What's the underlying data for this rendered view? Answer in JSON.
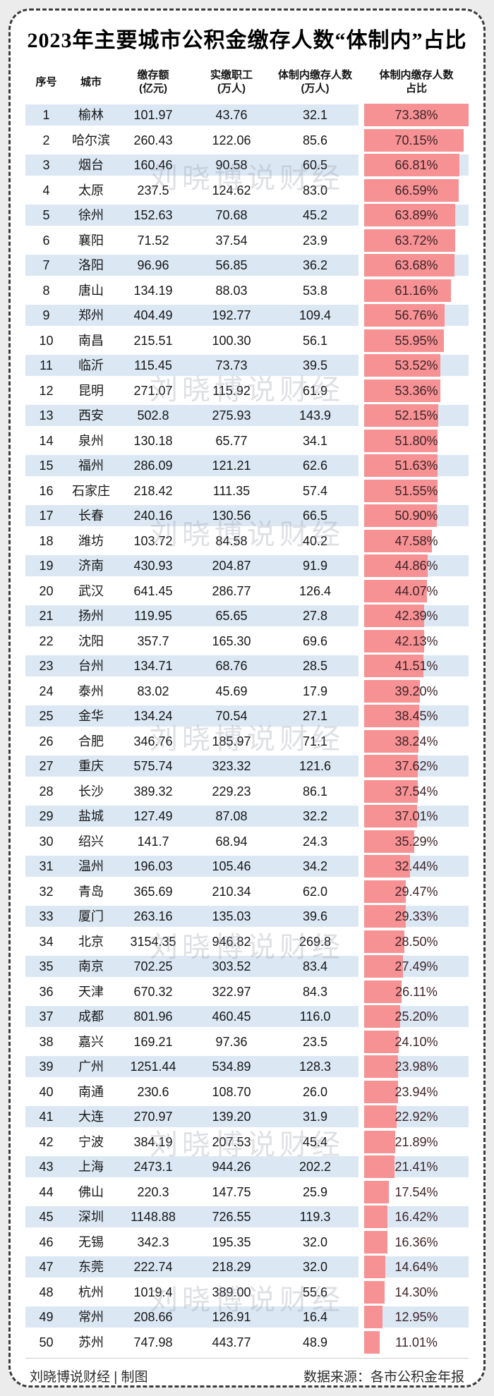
{
  "title": "2023年主要城市公积金缴存人数“体制内”占比",
  "table_headers": [
    {
      "line1": "序号",
      "line2": ""
    },
    {
      "line1": "城市",
      "line2": ""
    },
    {
      "line1": "缴存额",
      "line2": "(亿元)"
    },
    {
      "line1": "实缴职工",
      "line2": "(万人)"
    },
    {
      "line1": "体制内缴存人数",
      "line2": "(万人)"
    },
    {
      "line1": "体制内缴存人数",
      "line2": "占比"
    }
  ],
  "watermark": "刘晓博说财经",
  "footer": {
    "credit": "刘晓博说财经 | 制图",
    "source": "数据来源：各市公积金年报"
  },
  "colors": {
    "bar": "#f69194",
    "row_alt": "#dbe8f4",
    "ratio_text": "#3f2327",
    "title_text": "#000000"
  },
  "chart_data": {
    "type": "table",
    "title": "2023年主要城市公积金缴存人数“体制内”占比",
    "columns": [
      "序号",
      "城市",
      "缴存额(亿元)",
      "实缴职工(万人)",
      "体制内缴存人数(万人)",
      "体制内缴存人数占比"
    ],
    "bar_column": "体制内缴存人数占比",
    "bar_scale_max_pct": 73.38,
    "rows": [
      {
        "rank": "1",
        "city": "榆林",
        "amount": "101.97",
        "workers": "43.76",
        "inside": "32.1",
        "ratio": "73.38%",
        "ratio_value": 73.38
      },
      {
        "rank": "2",
        "city": "哈尔滨",
        "amount": "260.43",
        "workers": "122.06",
        "inside": "85.6",
        "ratio": "70.15%",
        "ratio_value": 70.15
      },
      {
        "rank": "3",
        "city": "烟台",
        "amount": "160.46",
        "workers": "90.58",
        "inside": "60.5",
        "ratio": "66.81%",
        "ratio_value": 66.81
      },
      {
        "rank": "4",
        "city": "太原",
        "amount": "237.5",
        "workers": "124.62",
        "inside": "83.0",
        "ratio": "66.59%",
        "ratio_value": 66.59
      },
      {
        "rank": "5",
        "city": "徐州",
        "amount": "152.63",
        "workers": "70.68",
        "inside": "45.2",
        "ratio": "63.89%",
        "ratio_value": 63.89
      },
      {
        "rank": "6",
        "city": "襄阳",
        "amount": "71.52",
        "workers": "37.54",
        "inside": "23.9",
        "ratio": "63.72%",
        "ratio_value": 63.72
      },
      {
        "rank": "7",
        "city": "洛阳",
        "amount": "96.96",
        "workers": "56.85",
        "inside": "36.2",
        "ratio": "63.68%",
        "ratio_value": 63.68
      },
      {
        "rank": "8",
        "city": "唐山",
        "amount": "134.19",
        "workers": "88.03",
        "inside": "53.8",
        "ratio": "61.16%",
        "ratio_value": 61.16
      },
      {
        "rank": "9",
        "city": "郑州",
        "amount": "404.49",
        "workers": "192.77",
        "inside": "109.4",
        "ratio": "56.76%",
        "ratio_value": 56.76
      },
      {
        "rank": "10",
        "city": "南昌",
        "amount": "215.51",
        "workers": "100.30",
        "inside": "56.1",
        "ratio": "55.95%",
        "ratio_value": 55.95
      },
      {
        "rank": "11",
        "city": "临沂",
        "amount": "115.45",
        "workers": "73.73",
        "inside": "39.5",
        "ratio": "53.52%",
        "ratio_value": 53.52
      },
      {
        "rank": "12",
        "city": "昆明",
        "amount": "271.07",
        "workers": "115.92",
        "inside": "61.9",
        "ratio": "53.36%",
        "ratio_value": 53.36
      },
      {
        "rank": "13",
        "city": "西安",
        "amount": "502.8",
        "workers": "275.93",
        "inside": "143.9",
        "ratio": "52.15%",
        "ratio_value": 52.15
      },
      {
        "rank": "14",
        "city": "泉州",
        "amount": "130.18",
        "workers": "65.77",
        "inside": "34.1",
        "ratio": "51.80%",
        "ratio_value": 51.8
      },
      {
        "rank": "15",
        "city": "福州",
        "amount": "286.09",
        "workers": "121.21",
        "inside": "62.6",
        "ratio": "51.63%",
        "ratio_value": 51.63
      },
      {
        "rank": "16",
        "city": "石家庄",
        "amount": "218.42",
        "workers": "111.35",
        "inside": "57.4",
        "ratio": "51.55%",
        "ratio_value": 51.55
      },
      {
        "rank": "17",
        "city": "长春",
        "amount": "240.16",
        "workers": "130.56",
        "inside": "66.5",
        "ratio": "50.90%",
        "ratio_value": 50.9
      },
      {
        "rank": "18",
        "city": "潍坊",
        "amount": "103.72",
        "workers": "84.58",
        "inside": "40.2",
        "ratio": "47.58%",
        "ratio_value": 47.58
      },
      {
        "rank": "19",
        "city": "济南",
        "amount": "430.93",
        "workers": "204.87",
        "inside": "91.9",
        "ratio": "44.86%",
        "ratio_value": 44.86
      },
      {
        "rank": "20",
        "city": "武汉",
        "amount": "641.45",
        "workers": "286.77",
        "inside": "126.4",
        "ratio": "44.07%",
        "ratio_value": 44.07
      },
      {
        "rank": "21",
        "city": "扬州",
        "amount": "119.95",
        "workers": "65.65",
        "inside": "27.8",
        "ratio": "42.39%",
        "ratio_value": 42.39
      },
      {
        "rank": "22",
        "city": "沈阳",
        "amount": "357.7",
        "workers": "165.30",
        "inside": "69.6",
        "ratio": "42.13%",
        "ratio_value": 42.13
      },
      {
        "rank": "23",
        "city": "台州",
        "amount": "134.71",
        "workers": "68.76",
        "inside": "28.5",
        "ratio": "41.51%",
        "ratio_value": 41.51
      },
      {
        "rank": "24",
        "city": "泰州",
        "amount": "83.02",
        "workers": "45.69",
        "inside": "17.9",
        "ratio": "39.20%",
        "ratio_value": 39.2
      },
      {
        "rank": "25",
        "city": "金华",
        "amount": "134.24",
        "workers": "70.54",
        "inside": "27.1",
        "ratio": "38.45%",
        "ratio_value": 38.45
      },
      {
        "rank": "26",
        "city": "合肥",
        "amount": "346.76",
        "workers": "185.97",
        "inside": "71.1",
        "ratio": "38.24%",
        "ratio_value": 38.24
      },
      {
        "rank": "27",
        "city": "重庆",
        "amount": "575.74",
        "workers": "323.32",
        "inside": "121.6",
        "ratio": "37.62%",
        "ratio_value": 37.62
      },
      {
        "rank": "28",
        "city": "长沙",
        "amount": "389.32",
        "workers": "229.23",
        "inside": "86.1",
        "ratio": "37.54%",
        "ratio_value": 37.54
      },
      {
        "rank": "29",
        "city": "盐城",
        "amount": "127.49",
        "workers": "87.08",
        "inside": "32.2",
        "ratio": "37.01%",
        "ratio_value": 37.01
      },
      {
        "rank": "30",
        "city": "绍兴",
        "amount": "141.7",
        "workers": "68.94",
        "inside": "24.3",
        "ratio": "35.29%",
        "ratio_value": 35.29
      },
      {
        "rank": "31",
        "city": "温州",
        "amount": "196.03",
        "workers": "105.46",
        "inside": "34.2",
        "ratio": "32.44%",
        "ratio_value": 32.44
      },
      {
        "rank": "32",
        "city": "青岛",
        "amount": "365.69",
        "workers": "210.34",
        "inside": "62.0",
        "ratio": "29.47%",
        "ratio_value": 29.47
      },
      {
        "rank": "33",
        "city": "厦门",
        "amount": "263.16",
        "workers": "135.03",
        "inside": "39.6",
        "ratio": "29.33%",
        "ratio_value": 29.33
      },
      {
        "rank": "34",
        "city": "北京",
        "amount": "3154.35",
        "workers": "946.82",
        "inside": "269.8",
        "ratio": "28.50%",
        "ratio_value": 28.5
      },
      {
        "rank": "35",
        "city": "南京",
        "amount": "702.25",
        "workers": "303.52",
        "inside": "83.4",
        "ratio": "27.49%",
        "ratio_value": 27.49
      },
      {
        "rank": "36",
        "city": "天津",
        "amount": "670.32",
        "workers": "322.97",
        "inside": "84.3",
        "ratio": "26.11%",
        "ratio_value": 26.11
      },
      {
        "rank": "37",
        "city": "成都",
        "amount": "801.96",
        "workers": "460.45",
        "inside": "116.0",
        "ratio": "25.20%",
        "ratio_value": 25.2
      },
      {
        "rank": "38",
        "city": "嘉兴",
        "amount": "169.21",
        "workers": "97.36",
        "inside": "23.5",
        "ratio": "24.10%",
        "ratio_value": 24.1
      },
      {
        "rank": "39",
        "city": "广州",
        "amount": "1251.44",
        "workers": "534.89",
        "inside": "128.3",
        "ratio": "23.98%",
        "ratio_value": 23.98
      },
      {
        "rank": "40",
        "city": "南通",
        "amount": "230.6",
        "workers": "108.70",
        "inside": "26.0",
        "ratio": "23.94%",
        "ratio_value": 23.94
      },
      {
        "rank": "41",
        "city": "大连",
        "amount": "270.97",
        "workers": "139.20",
        "inside": "31.9",
        "ratio": "22.92%",
        "ratio_value": 22.92
      },
      {
        "rank": "42",
        "city": "宁波",
        "amount": "384.19",
        "workers": "207.53",
        "inside": "45.4",
        "ratio": "21.89%",
        "ratio_value": 21.89
      },
      {
        "rank": "43",
        "city": "上海",
        "amount": "2473.1",
        "workers": "944.26",
        "inside": "202.2",
        "ratio": "21.41%",
        "ratio_value": 21.41
      },
      {
        "rank": "44",
        "city": "佛山",
        "amount": "220.3",
        "workers": "147.75",
        "inside": "25.9",
        "ratio": "17.54%",
        "ratio_value": 17.54
      },
      {
        "rank": "45",
        "city": "深圳",
        "amount": "1148.88",
        "workers": "726.55",
        "inside": "119.3",
        "ratio": "16.42%",
        "ratio_value": 16.42
      },
      {
        "rank": "46",
        "city": "无锡",
        "amount": "342.3",
        "workers": "195.35",
        "inside": "32.0",
        "ratio": "16.36%",
        "ratio_value": 16.36
      },
      {
        "rank": "47",
        "city": "东莞",
        "amount": "222.74",
        "workers": "218.29",
        "inside": "32.0",
        "ratio": "14.64%",
        "ratio_value": 14.64
      },
      {
        "rank": "48",
        "city": "杭州",
        "amount": "1019.4",
        "workers": "389.00",
        "inside": "55.6",
        "ratio": "14.30%",
        "ratio_value": 14.3
      },
      {
        "rank": "49",
        "city": "常州",
        "amount": "208.66",
        "workers": "126.91",
        "inside": "16.4",
        "ratio": "12.95%",
        "ratio_value": 12.95
      },
      {
        "rank": "50",
        "city": "苏州",
        "amount": "747.98",
        "workers": "443.77",
        "inside": "48.9",
        "ratio": "11.01%",
        "ratio_value": 11.01
      }
    ]
  }
}
